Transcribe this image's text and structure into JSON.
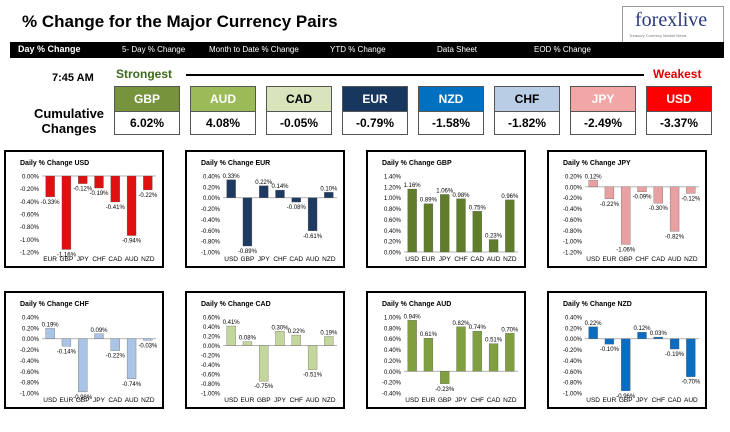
{
  "header": {
    "title": "% Change for the Major Currency Pairs",
    "logo": "forexlive",
    "logo_tagline": "Treasury Currency Market News"
  },
  "tabs": [
    "Day % Change",
    "5- Day % Change",
    "Month to Date % Change",
    "YTD % Change",
    "Data Sheet",
    "EOD % Change"
  ],
  "summary": {
    "time": "7:45 AM",
    "cumulative_label": "Cumulative Changes",
    "strongest_label": "Strongest",
    "weakest_label": "Weakest",
    "currencies": [
      {
        "name": "GBP",
        "value": "6.02%",
        "bg": "#77933c",
        "fg": "#ffffff"
      },
      {
        "name": "AUD",
        "value": "4.08%",
        "bg": "#9bbb59",
        "fg": "#ffffff"
      },
      {
        "name": "CAD",
        "value": "-0.05%",
        "bg": "#d7e4bc",
        "fg": "#000000"
      },
      {
        "name": "EUR",
        "value": "-0.79%",
        "bg": "#17375e",
        "fg": "#ffffff"
      },
      {
        "name": "NZD",
        "value": "-1.58%",
        "bg": "#0070c0",
        "fg": "#ffffff"
      },
      {
        "name": "CHF",
        "value": "-1.82%",
        "bg": "#b9cde5",
        "fg": "#000000"
      },
      {
        "name": "JPY",
        "value": "-2.49%",
        "bg": "#f2a7a7",
        "fg": "#ffffff"
      },
      {
        "name": "USD",
        "value": "-3.37%",
        "bg": "#ff0000",
        "fg": "#ffffff"
      }
    ]
  },
  "chart_data": [
    {
      "type": "bar",
      "title": "Daily % Change USD",
      "color": "#e01010",
      "categories": [
        "EUR",
        "GBP",
        "JPY",
        "CHF",
        "CAD",
        "AUD",
        "NZD"
      ],
      "values": [
        -0.33,
        -1.16,
        -0.12,
        -0.19,
        -0.41,
        -0.94,
        -0.22
      ],
      "labels": [
        "-0.33%",
        "-1.16%",
        "-0.12%",
        "-0.19%",
        "-0.41%",
        "-0.94%",
        "-0.22%"
      ],
      "ylim": [
        -1.2,
        0
      ],
      "ticks": [
        "0.00%",
        "-0.20%",
        "-0.40%",
        "-0.60%",
        "-0.80%",
        "-1.00%",
        "-1.20%"
      ]
    },
    {
      "type": "bar",
      "title": "Daily % Change EUR",
      "color": "#1f3a60",
      "categories": [
        "USD",
        "GBP",
        "JPY",
        "CHF",
        "CAD",
        "AUD",
        "NZD"
      ],
      "values": [
        0.33,
        -0.89,
        0.22,
        0.14,
        -0.08,
        -0.61,
        0.1
      ],
      "labels": [
        "0.33%",
        "-0.89%",
        "0.22%",
        "0.14%",
        "-0.08%",
        "-0.61%",
        "0.10%"
      ],
      "ylim": [
        -1.0,
        0.4
      ],
      "ticks": [
        "0.40%",
        "0.20%",
        "0.00%",
        "-0.20%",
        "-0.40%",
        "-0.60%",
        "-0.80%",
        "-1.00%"
      ]
    },
    {
      "type": "bar",
      "title": "Daily % Change GBP",
      "color": "#5f7d2a",
      "categories": [
        "USD",
        "EUR",
        "JPY",
        "CHF",
        "CAD",
        "AUD",
        "NZD"
      ],
      "values": [
        1.16,
        0.89,
        1.06,
        0.98,
        0.75,
        0.23,
        0.96
      ],
      "labels": [
        "1.16%",
        "0.89%",
        "1.06%",
        "0.98%",
        "0.75%",
        "0.23%",
        "0.96%"
      ],
      "ylim": [
        0,
        1.4
      ],
      "ticks": [
        "1.40%",
        "1.20%",
        "1.00%",
        "0.80%",
        "0.60%",
        "0.40%",
        "0.20%",
        "0.00%"
      ]
    },
    {
      "type": "bar",
      "title": "Daily % Change JPY",
      "color": "#e8a0a0",
      "categories": [
        "USD",
        "EUR",
        "GBP",
        "CHF",
        "CAD",
        "AUD",
        "NZD"
      ],
      "values": [
        0.12,
        -0.22,
        -1.06,
        -0.09,
        -0.3,
        -0.82,
        -0.12
      ],
      "labels": [
        "0.12%",
        "-0.22%",
        "-1.06%",
        "-0.09%",
        "-0.30%",
        "-0.82%",
        "-0.12%"
      ],
      "ylim": [
        -1.2,
        0.2
      ],
      "ticks": [
        "0.20%",
        "0.00%",
        "-0.20%",
        "-0.40%",
        "-0.60%",
        "-0.80%",
        "-1.00%",
        "-1.20%"
      ]
    },
    {
      "type": "bar",
      "title": "Daily % Change CHF",
      "color": "#a9c4e4",
      "categories": [
        "USD",
        "EUR",
        "GBP",
        "JPY",
        "CAD",
        "AUD",
        "NZD"
      ],
      "values": [
        0.19,
        -0.14,
        -0.98,
        0.09,
        -0.22,
        -0.74,
        -0.03
      ],
      "labels": [
        "0.19%",
        "-0.14%",
        "-0.98%",
        "0.09%",
        "-0.22%",
        "-0.74%",
        "-0.03%"
      ],
      "ylim": [
        -1.0,
        0.4
      ],
      "ticks": [
        "0.40%",
        "0.20%",
        "0.00%",
        "-0.20%",
        "-0.40%",
        "-0.60%",
        "-0.80%",
        "-1.00%"
      ]
    },
    {
      "type": "bar",
      "title": "Daily % Change CAD",
      "color": "#c3d69b",
      "categories": [
        "USD",
        "EUR",
        "GBP",
        "JPY",
        "CHF",
        "AUD",
        "NZD"
      ],
      "values": [
        0.41,
        0.08,
        -0.75,
        0.3,
        0.22,
        -0.51,
        0.19
      ],
      "labels": [
        "0.41%",
        "0.08%",
        "-0.75%",
        "0.30%",
        "0.22%",
        "-0.51%",
        "0.19%"
      ],
      "ylim": [
        -1.0,
        0.6
      ],
      "ticks": [
        "0.60%",
        "0.40%",
        "0.20%",
        "0.00%",
        "-0.20%",
        "-0.40%",
        "-0.60%",
        "-0.80%",
        "-1.00%"
      ]
    },
    {
      "type": "bar",
      "title": "Daily % Change AUD",
      "color": "#7f9f40",
      "categories": [
        "USD",
        "EUR",
        "GBP",
        "JPY",
        "CHF",
        "CAD",
        "NZD"
      ],
      "values": [
        0.94,
        0.61,
        -0.23,
        0.82,
        0.74,
        0.51,
        0.7
      ],
      "labels": [
        "0.94%",
        "0.61%",
        "-0.23%",
        "0.82%",
        "0.74%",
        "0.51%",
        "0.70%"
      ],
      "ylim": [
        -0.4,
        1.0
      ],
      "ticks": [
        "1.00%",
        "0.80%",
        "0.60%",
        "0.40%",
        "0.20%",
        "0.00%",
        "-0.20%",
        "-0.40%"
      ]
    },
    {
      "type": "bar",
      "title": "Daily % Change NZD",
      "color": "#0c6cc0",
      "categories": [
        "USD",
        "EUR",
        "GBP",
        "JPY",
        "CHF",
        "CAD",
        "AUD"
      ],
      "values": [
        0.22,
        -0.1,
        -0.96,
        0.12,
        0.03,
        -0.19,
        -0.7
      ],
      "labels": [
        "0.22%",
        "-0.10%",
        "-0.96%",
        "0.12%",
        "0.03%",
        "-0.19%",
        "-0.70%"
      ],
      "ylim": [
        -1.0,
        0.4
      ],
      "ticks": [
        "0.40%",
        "0.20%",
        "0.00%",
        "-0.20%",
        "-0.40%",
        "-0.60%",
        "-0.80%",
        "-1.00%"
      ]
    }
  ]
}
